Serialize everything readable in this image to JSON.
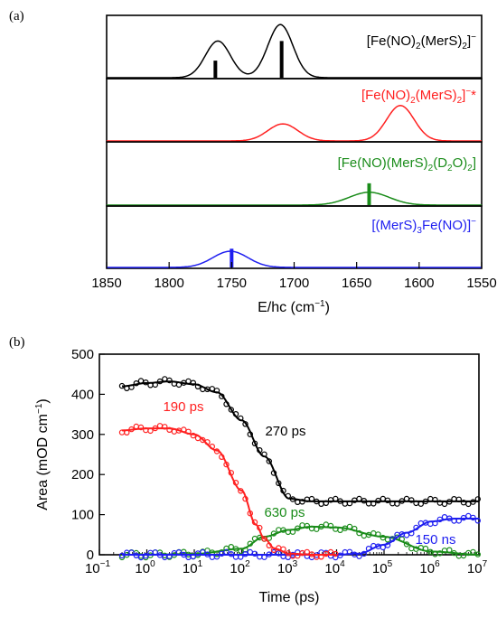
{
  "colors": {
    "black": "#000000",
    "red": "#ff2020",
    "green": "#1a8c1a",
    "blue": "#1e1ef0"
  },
  "chart_data": [
    {
      "type": "line",
      "panel_label": "(a)",
      "xlabel": "E/hc (cm⁻¹)",
      "xlim": [
        1850,
        1550
      ],
      "x_reversed": true,
      "xticks": [
        "1850",
        "1800",
        "1750",
        "1700",
        "1650",
        "1600",
        "1550"
      ],
      "series": [
        {
          "name": "[Fe(NO)₂(MerS)₂]⁻",
          "color": "#000000",
          "peaks": [
            {
              "center": 1761,
              "width": 10,
              "height": 0.58
            },
            {
              "center": 1711,
              "width": 10,
              "height": 0.84
            }
          ],
          "sticks": [
            {
              "x": 1763,
              "height": 0.27
            },
            {
              "x": 1710,
              "height": 0.58
            }
          ]
        },
        {
          "name": "[Fe(NO)₂(MerS)₂]⁻*",
          "color": "#ff2020",
          "peaks": [
            {
              "center": 1709,
              "width": 12,
              "height": 0.27
            },
            {
              "center": 1615,
              "width": 11,
              "height": 0.56
            }
          ],
          "sticks": []
        },
        {
          "name": "[Fe(NO)(MerS)₂(D₂O)₂]",
          "color": "#1a8c1a",
          "peaks": [
            {
              "center": 1640,
              "width": 16,
              "height": 0.2
            }
          ],
          "sticks": [
            {
              "x": 1640,
              "height": 0.34
            }
          ]
        },
        {
          "name": "[(MerS)₃Fe(NO)]⁻",
          "color": "#1e1ef0",
          "peaks": [
            {
              "center": 1751,
              "width": 14,
              "height": 0.26
            }
          ],
          "sticks": [
            {
              "x": 1750,
              "height": 0.3
            }
          ]
        }
      ]
    },
    {
      "type": "scatter",
      "panel_label": "(b)",
      "xlabel": "Time (ps)",
      "ylabel": "Area (mOD cm⁻¹)",
      "x_scale": "log",
      "xlim": [
        0.1,
        10000000
      ],
      "ylim": [
        0,
        500
      ],
      "xticks": [
        {
          "base": "10",
          "exp": "-1"
        },
        {
          "base": "10",
          "exp": "0"
        },
        {
          "base": "10",
          "exp": "1"
        },
        {
          "base": "10",
          "exp": "2"
        },
        {
          "base": "10",
          "exp": "3"
        },
        {
          "base": "10",
          "exp": "4"
        },
        {
          "base": "10",
          "exp": "5"
        },
        {
          "base": "10",
          "exp": "6"
        },
        {
          "base": "10",
          "exp": "7"
        }
      ],
      "yticks": [
        "0",
        "100",
        "200",
        "300",
        "400",
        "500"
      ],
      "annotations": [
        {
          "text": "190 ps",
          "color": "#ff2020"
        },
        {
          "text": "270 ps",
          "color": "#000000"
        },
        {
          "text": "630 ps",
          "color": "#1a8c1a"
        },
        {
          "text": "150 ns",
          "color": "#1e1ef0"
        }
      ],
      "series": [
        {
          "label": "270 ps",
          "color": "#000000",
          "x": [
            0.3,
            1,
            3,
            10,
            30,
            100,
            300,
            1000,
            3000,
            10000,
            100000,
            1000000,
            10000000
          ],
          "y": [
            420,
            428,
            432,
            425,
            405,
            335,
            245,
            140,
            133,
            133,
            133,
            133,
            133
          ]
        },
        {
          "label": "190 ps",
          "color": "#ff2020",
          "x": [
            0.3,
            1,
            3,
            10,
            30,
            100,
            200,
            300,
            500,
            1000,
            3000,
            10000
          ],
          "y": [
            310,
            315,
            315,
            300,
            260,
            160,
            75,
            40,
            15,
            3,
            0,
            0
          ]
        },
        {
          "label": "630 ps",
          "color": "#1a8c1a",
          "x": [
            0.3,
            1,
            10,
            100,
            300,
            1000,
            3000,
            10000,
            100000,
            1000000,
            10000000
          ],
          "y": [
            0,
            0,
            2,
            15,
            45,
            62,
            70,
            68,
            45,
            8,
            0
          ]
        },
        {
          "label": "150 ns",
          "color": "#1e1ef0",
          "x": [
            0.3,
            100,
            10000,
            30000,
            100000,
            300000,
            1000000,
            3000000,
            10000000
          ],
          "y": [
            0,
            0,
            0,
            3,
            25,
            55,
            83,
            90,
            90
          ]
        }
      ]
    }
  ]
}
